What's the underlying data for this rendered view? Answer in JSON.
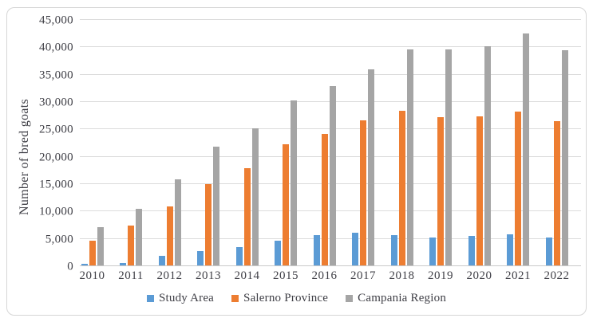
{
  "colors": {
    "study_area": "#5B9BD5",
    "salerno_province": "#ED7D31",
    "campania_region": "#A5A5A5",
    "gridline": "#dcdcdc",
    "axis_line": "#c9c9c9",
    "text": "#3f3f46",
    "frame_border": "#d6d6d6"
  },
  "chart_data": {
    "type": "bar",
    "title": "",
    "xlabel": "",
    "ylabel": "Number of bred goats",
    "ylim": [
      0,
      45000
    ],
    "ytick_step": 5000,
    "ytick_labels": [
      "0",
      "5,000",
      "10,000",
      "15,000",
      "20,000",
      "25,000",
      "30,000",
      "35,000",
      "40,000",
      "45,000"
    ],
    "grid": true,
    "legend_position": "bottom",
    "categories": [
      "2010",
      "2011",
      "2012",
      "2013",
      "2014",
      "2015",
      "2016",
      "2017",
      "2018",
      "2019",
      "2020",
      "2021",
      "2022"
    ],
    "series": [
      {
        "name": "Study Area",
        "color": "#5B9BD5",
        "values": [
          300,
          450,
          1800,
          2600,
          3400,
          4500,
          5600,
          6000,
          5600,
          5100,
          5400,
          5700,
          5100
        ]
      },
      {
        "name": "Salerno Province",
        "color": "#ED7D31",
        "values": [
          4500,
          7300,
          10800,
          14800,
          17700,
          22200,
          24100,
          26500,
          28200,
          27100,
          27200,
          28100,
          26300
        ]
      },
      {
        "name": "Campania Region",
        "color": "#A5A5A5",
        "values": [
          7000,
          10300,
          15700,
          21700,
          25000,
          30200,
          32800,
          35800,
          39500,
          39500,
          40000,
          42400,
          39300
        ]
      }
    ]
  }
}
